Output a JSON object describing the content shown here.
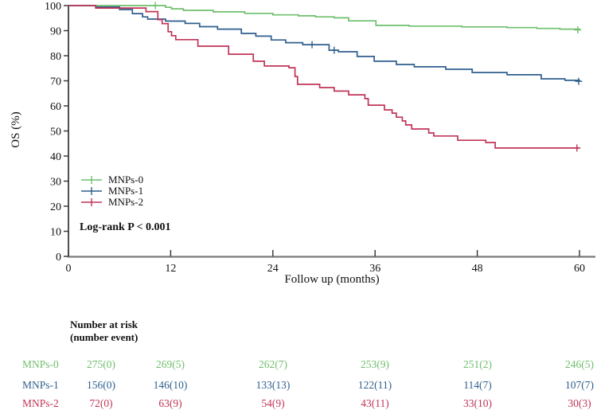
{
  "figure": {
    "y_axis_label": "OS (%)",
    "x_axis_label": "Follow up (months)",
    "annotation": "Log-rank P < 0.001"
  },
  "chart_data": {
    "type": "line",
    "subtype": "kaplan-meier-step",
    "title": "",
    "xlabel": "Follow up (months)",
    "ylabel": "OS (%)",
    "xlim": [
      0,
      60
    ],
    "ylim": [
      0,
      100
    ],
    "x_ticks": [
      0,
      12,
      24,
      36,
      48,
      60
    ],
    "y_ticks": [
      0,
      10,
      20,
      30,
      40,
      50,
      60,
      70,
      80,
      90,
      100
    ],
    "grid": false,
    "legend_position": "inside-left-middle",
    "annotation": "Log-rank P < 0.001",
    "axis_color": "#3c3c3c",
    "x_axis_line_color": "#7a7a7a",
    "series": [
      {
        "name": "MNPs-0",
        "color": "#6fbf6d",
        "points": [
          [
            0,
            100
          ],
          [
            11.2,
            100
          ],
          [
            11.4,
            99.3
          ],
          [
            12.1,
            98.7
          ],
          [
            13.5,
            98.1
          ],
          [
            17,
            97.5
          ],
          [
            20.7,
            96.9
          ],
          [
            24,
            96.3
          ],
          [
            27,
            95.9
          ],
          [
            29,
            95.5
          ],
          [
            31.2,
            95.1
          ],
          [
            32.9,
            93.9
          ],
          [
            36.1,
            92.1
          ],
          [
            40,
            91.8
          ],
          [
            46.2,
            91.5
          ],
          [
            51.5,
            91.2
          ],
          [
            55,
            90.9
          ],
          [
            57.7,
            90.6
          ],
          [
            60,
            90.3
          ]
        ],
        "censors": [
          [
            10.2,
            100
          ],
          [
            59.8,
            90.3
          ]
        ]
      },
      {
        "name": "MNPs-1",
        "color": "#2f5f8e",
        "points": [
          [
            0,
            100
          ],
          [
            3,
            100
          ],
          [
            3.2,
            99.4
          ],
          [
            6,
            98.4
          ],
          [
            7.5,
            96.8
          ],
          [
            8.7,
            95.5
          ],
          [
            9.3,
            94.6
          ],
          [
            11.4,
            93.8
          ],
          [
            13.7,
            92.9
          ],
          [
            15.4,
            91.6
          ],
          [
            17.5,
            90.6
          ],
          [
            20.3,
            88.9
          ],
          [
            22,
            87.8
          ],
          [
            23.8,
            86.3
          ],
          [
            25.5,
            85.2
          ],
          [
            27.5,
            84.4
          ],
          [
            30.6,
            82.2
          ],
          [
            31.7,
            81.6
          ],
          [
            33.9,
            79.7
          ],
          [
            35.9,
            77.8
          ],
          [
            38.5,
            76.5
          ],
          [
            40.6,
            75.6
          ],
          [
            44.3,
            74.6
          ],
          [
            47.4,
            73.3
          ],
          [
            51.5,
            72.4
          ],
          [
            55.5,
            70.8
          ],
          [
            58.3,
            70.2
          ],
          [
            60,
            69.8
          ]
        ],
        "censors": [
          [
            28.6,
            84.4
          ],
          [
            31.2,
            82.2
          ],
          [
            59.9,
            69.8
          ]
        ]
      },
      {
        "name": "MNPs-2",
        "color": "#c03457",
        "points": [
          [
            0,
            100
          ],
          [
            3,
            100
          ],
          [
            3.2,
            99
          ],
          [
            8.9,
            99
          ],
          [
            9.1,
            97.6
          ],
          [
            10.5,
            94.4
          ],
          [
            11,
            92.8
          ],
          [
            11.7,
            89.6
          ],
          [
            12.1,
            88
          ],
          [
            12.6,
            86.4
          ],
          [
            15.2,
            83.8
          ],
          [
            18.8,
            80.6
          ],
          [
            21.7,
            77.8
          ],
          [
            23,
            75.9
          ],
          [
            25.9,
            75.2
          ],
          [
            26.6,
            71.7
          ],
          [
            26.9,
            68.6
          ],
          [
            29.5,
            67.3
          ],
          [
            31.2,
            65.9
          ],
          [
            32.9,
            64.4
          ],
          [
            34.8,
            62.9
          ],
          [
            35.2,
            60.3
          ],
          [
            37.1,
            58.4
          ],
          [
            38,
            57.1
          ],
          [
            38.5,
            55.5
          ],
          [
            39.2,
            54
          ],
          [
            39.6,
            52.4
          ],
          [
            40.3,
            50.8
          ],
          [
            42.3,
            49.2
          ],
          [
            42.9,
            48
          ],
          [
            45.7,
            46.3
          ],
          [
            49,
            45.4
          ],
          [
            50.1,
            43.2
          ],
          [
            60,
            43.2
          ]
        ],
        "censors": [
          [
            59.7,
            43.2
          ]
        ]
      }
    ]
  },
  "risk_table": {
    "header_line1": "Number at risk",
    "header_line2": "(number event)",
    "time_points": [
      0,
      12,
      24,
      36,
      48,
      60
    ],
    "rows": [
      {
        "label": "MNPs-0",
        "color": "#6fbf6d",
        "values": [
          "275(0)",
          "269(5)",
          "262(7)",
          "253(9)",
          "251(2)",
          "246(5)"
        ]
      },
      {
        "label": "MNPs-1",
        "color": "#2f5f8e",
        "values": [
          "156(0)",
          "146(10)",
          "133(13)",
          "122(11)",
          "114(7)",
          "107(7)"
        ]
      },
      {
        "label": "MNPs-2",
        "color": "#c03457",
        "values": [
          "72(0)",
          "63(9)",
          "54(9)",
          "43(11)",
          "33(10)",
          "30(3)"
        ]
      }
    ]
  }
}
